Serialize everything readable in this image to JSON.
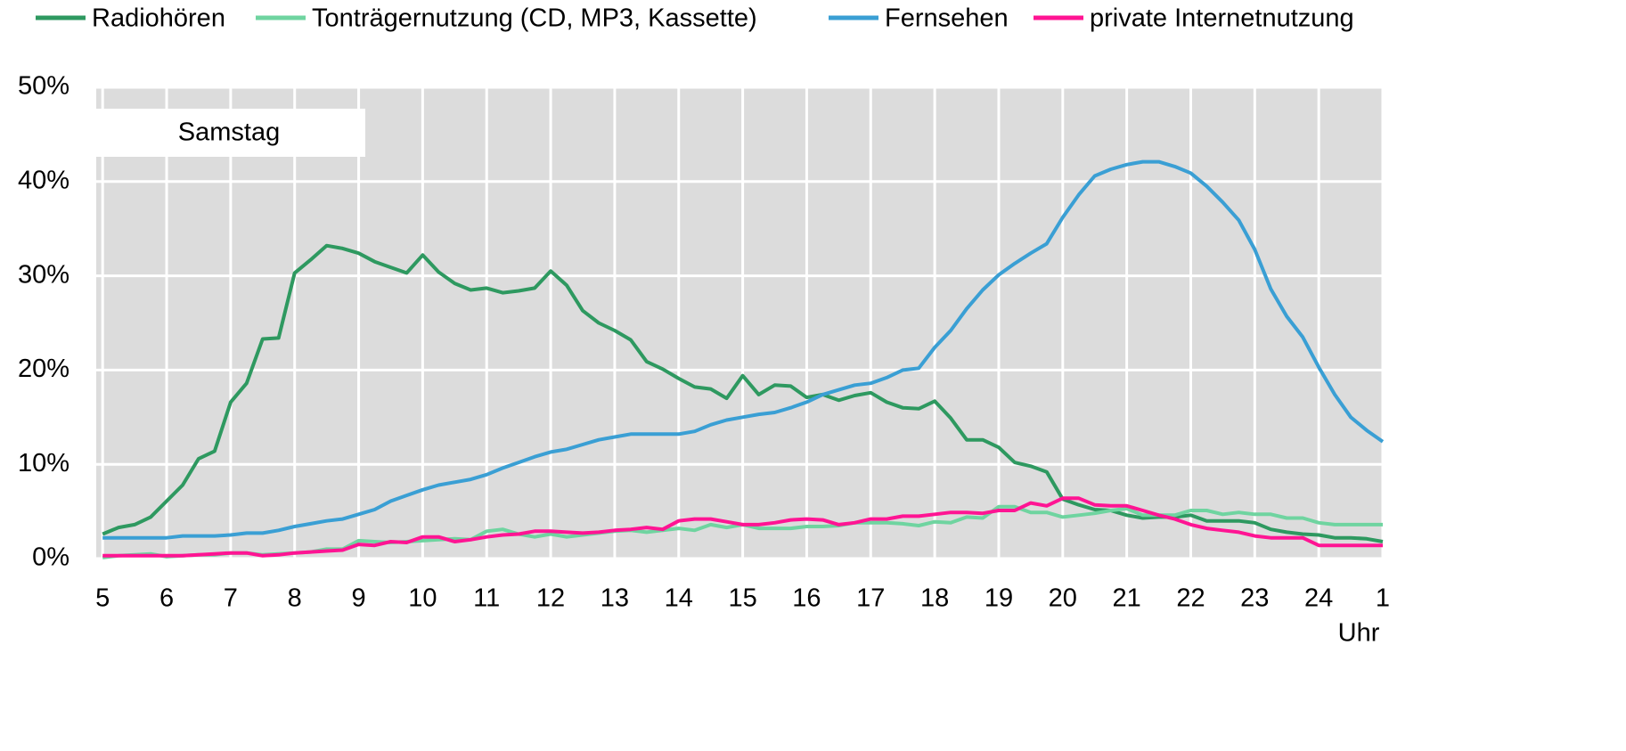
{
  "chart_data": {
    "type": "line",
    "annotation": "Samstag",
    "x_label": "Uhr",
    "x": [
      5,
      5.25,
      5.5,
      5.75,
      6,
      6.25,
      6.5,
      6.75,
      7,
      7.25,
      7.5,
      7.75,
      8,
      8.25,
      8.5,
      8.75,
      9,
      9.25,
      9.5,
      9.75,
      10,
      10.25,
      10.5,
      10.75,
      11,
      11.25,
      11.5,
      11.75,
      12,
      12.25,
      12.5,
      12.75,
      13,
      13.25,
      13.5,
      13.75,
      14,
      14.25,
      14.5,
      14.75,
      15,
      15.25,
      15.5,
      15.75,
      16,
      16.25,
      16.5,
      16.75,
      17,
      17.25,
      17.5,
      17.75,
      18,
      18.25,
      18.5,
      18.75,
      19,
      19.25,
      19.5,
      19.75,
      20,
      20.25,
      20.5,
      20.75,
      21,
      21.25,
      21.5,
      21.75,
      22,
      22.25,
      22.5,
      22.75,
      23,
      23.25,
      23.5,
      23.75,
      24,
      24.25,
      24.5,
      24.75,
      25
    ],
    "xlim": [
      4.9,
      25
    ],
    "xticks": [
      5,
      6,
      7,
      8,
      9,
      10,
      11,
      12,
      13,
      14,
      15,
      16,
      17,
      18,
      19,
      20,
      21,
      22,
      23,
      24,
      {
        "value": 25,
        "label": "1"
      }
    ],
    "ylim": [
      0,
      50
    ],
    "yticks": [
      {
        "value": 0,
        "label": "0%"
      },
      {
        "value": 10,
        "label": "10%"
      },
      {
        "value": 20,
        "label": "20%"
      },
      {
        "value": 30,
        "label": "30%"
      },
      {
        "value": 40,
        "label": "40%"
      },
      {
        "value": 50,
        "label": "50%"
      }
    ],
    "grid": true,
    "legend": "top",
    "series": [
      {
        "name": "Radiohören",
        "color": "#2e9960",
        "values": [
          2.6,
          3.3,
          3.6,
          4.4,
          6.1,
          7.8,
          10.6,
          11.4,
          16.6,
          18.6,
          23.3,
          23.4,
          30.3,
          31.7,
          33.2,
          32.9,
          32.4,
          31.5,
          30.9,
          30.3,
          32.2,
          30.4,
          29.2,
          28.5,
          28.7,
          28.2,
          28.4,
          28.7,
          30.5,
          29.0,
          26.3,
          25.0,
          24.2,
          23.2,
          20.9,
          20.1,
          19.1,
          18.2,
          18.0,
          17.0,
          19.4,
          17.4,
          18.4,
          18.3,
          17.1,
          17.4,
          16.8,
          17.3,
          17.6,
          16.6,
          16.0,
          15.9,
          16.7,
          14.9,
          12.6,
          12.6,
          11.8,
          10.2,
          9.8,
          9.2,
          6.3,
          5.7,
          5.2,
          5.1,
          4.6,
          4.3,
          4.4,
          4.4,
          4.6,
          4.0,
          4.0,
          4.0,
          3.8,
          3.1,
          2.8,
          2.6,
          2.5,
          2.2,
          2.2,
          2.1,
          1.8
        ]
      },
      {
        "name": "Tonträgernutzung (CD, MP3, Kassette)",
        "color": "#6fd4a0",
        "values": [
          0.1,
          0.3,
          0.4,
          0.5,
          0.2,
          0.3,
          0.4,
          0.4,
          0.6,
          0.6,
          0.4,
          0.5,
          0.6,
          0.7,
          1.0,
          1.0,
          1.9,
          1.8,
          1.7,
          1.8,
          1.9,
          2.0,
          2.1,
          2.0,
          2.9,
          3.1,
          2.6,
          2.3,
          2.6,
          2.3,
          2.5,
          2.7,
          2.9,
          3.0,
          2.8,
          3.0,
          3.2,
          3.0,
          3.6,
          3.3,
          3.6,
          3.2,
          3.2,
          3.2,
          3.4,
          3.4,
          3.5,
          3.8,
          3.8,
          3.8,
          3.7,
          3.5,
          3.9,
          3.8,
          4.4,
          4.3,
          5.5,
          5.5,
          4.9,
          4.9,
          4.4,
          4.6,
          4.8,
          5.1,
          5.3,
          4.6,
          4.6,
          4.6,
          5.1,
          5.1,
          4.7,
          4.9,
          4.7,
          4.7,
          4.3,
          4.3,
          3.8,
          3.6,
          3.6,
          3.6,
          3.6
        ]
      },
      {
        "name": "Fernsehen",
        "color": "#3a9fd4",
        "values": [
          2.2,
          2.2,
          2.2,
          2.2,
          2.2,
          2.4,
          2.4,
          2.4,
          2.5,
          2.7,
          2.7,
          3.0,
          3.4,
          3.7,
          4.0,
          4.2,
          4.7,
          5.2,
          6.1,
          6.7,
          7.3,
          7.8,
          8.1,
          8.4,
          8.9,
          9.6,
          10.2,
          10.8,
          11.3,
          11.6,
          12.1,
          12.6,
          12.9,
          13.2,
          13.2,
          13.2,
          13.2,
          13.5,
          14.2,
          14.7,
          15.0,
          15.3,
          15.5,
          16.0,
          16.6,
          17.4,
          17.9,
          18.4,
          18.6,
          19.2,
          20.0,
          20.2,
          22.4,
          24.2,
          26.5,
          28.5,
          30.1,
          31.3,
          32.4,
          33.4,
          36.2,
          38.6,
          40.6,
          41.3,
          41.8,
          42.1,
          42.1,
          41.6,
          40.9,
          39.5,
          37.8,
          35.9,
          32.8,
          28.6,
          25.7,
          23.5,
          20.3,
          17.4,
          15.0,
          13.6,
          12.4
        ]
      },
      {
        "name": "private Internetnutzung",
        "color": "#ff1493",
        "values": [
          0.3,
          0.3,
          0.3,
          0.3,
          0.3,
          0.3,
          0.4,
          0.5,
          0.6,
          0.6,
          0.3,
          0.4,
          0.6,
          0.7,
          0.8,
          0.9,
          1.5,
          1.4,
          1.8,
          1.7,
          2.3,
          2.3,
          1.8,
          2.0,
          2.3,
          2.5,
          2.6,
          2.9,
          2.9,
          2.8,
          2.7,
          2.8,
          3.0,
          3.1,
          3.3,
          3.1,
          4.0,
          4.2,
          4.2,
          3.9,
          3.6,
          3.6,
          3.8,
          4.1,
          4.2,
          4.1,
          3.6,
          3.8,
          4.2,
          4.2,
          4.5,
          4.5,
          4.7,
          4.9,
          4.9,
          4.8,
          5.1,
          5.1,
          5.9,
          5.6,
          6.4,
          6.4,
          5.7,
          5.6,
          5.6,
          5.1,
          4.6,
          4.2,
          3.6,
          3.2,
          3.0,
          2.8,
          2.4,
          2.2,
          2.2,
          2.2,
          1.4,
          1.4,
          1.4,
          1.4,
          1.4
        ]
      }
    ]
  }
}
